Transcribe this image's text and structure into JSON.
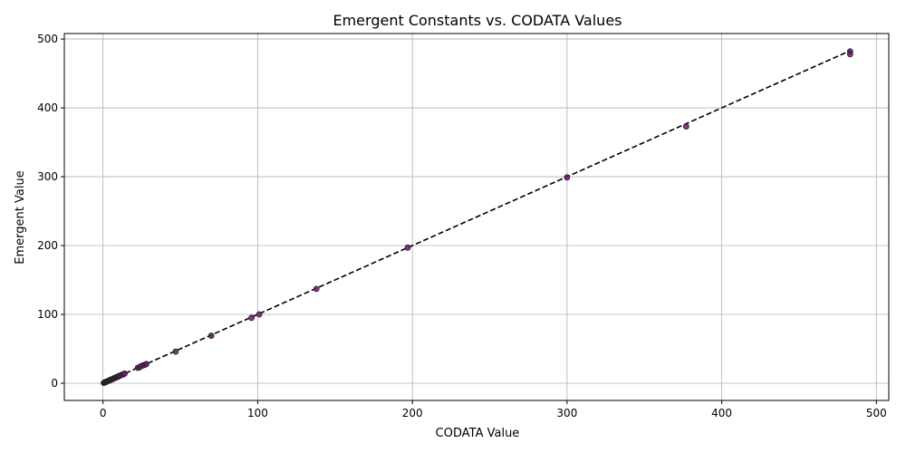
{
  "chart_data": {
    "type": "scatter",
    "title": "Emergent Constants vs. CODATA Values",
    "xlabel": "CODATA Value",
    "ylabel": "Emergent Value",
    "xlim": [
      -25,
      508
    ],
    "ylim": [
      -25,
      508
    ],
    "xticks": [
      0,
      100,
      200,
      300,
      400,
      500
    ],
    "yticks": [
      0,
      100,
      200,
      300,
      400,
      500
    ],
    "grid": true,
    "reference_line": {
      "style": "dashed",
      "color": "#000000",
      "from": [
        0,
        0
      ],
      "to": [
        483,
        483
      ]
    },
    "point_color": "#6a1a6a",
    "point_edge_color": "#222222",
    "points": [
      {
        "x": 0.5,
        "y": 0.5
      },
      {
        "x": 1.0,
        "y": 1.2
      },
      {
        "x": 1.5,
        "y": 1.4
      },
      {
        "x": 2.0,
        "y": 2.1
      },
      {
        "x": 2.5,
        "y": 2.3
      },
      {
        "x": 3.0,
        "y": 3.1
      },
      {
        "x": 3.5,
        "y": 3.6
      },
      {
        "x": 4.0,
        "y": 3.9
      },
      {
        "x": 4.5,
        "y": 4.6
      },
      {
        "x": 5.0,
        "y": 5.0
      },
      {
        "x": 5.5,
        "y": 5.4
      },
      {
        "x": 6.0,
        "y": 6.1
      },
      {
        "x": 6.5,
        "y": 6.4
      },
      {
        "x": 7.0,
        "y": 7.2
      },
      {
        "x": 7.5,
        "y": 7.4
      },
      {
        "x": 8.0,
        "y": 8.0
      },
      {
        "x": 8.5,
        "y": 8.6
      },
      {
        "x": 9.0,
        "y": 9.1
      },
      {
        "x": 9.5,
        "y": 9.3
      },
      {
        "x": 10.0,
        "y": 10.1
      },
      {
        "x": 10.5,
        "y": 10.4
      },
      {
        "x": 11.0,
        "y": 11.2
      },
      {
        "x": 12.0,
        "y": 12.1
      },
      {
        "x": 13.0,
        "y": 12.8
      },
      {
        "x": 14.0,
        "y": 14.1
      },
      {
        "x": 22.5,
        "y": 22.4
      },
      {
        "x": 23.5,
        "y": 23.2
      },
      {
        "x": 24.5,
        "y": 24.6
      },
      {
        "x": 26.0,
        "y": 26.1
      },
      {
        "x": 27.0,
        "y": 26.8
      },
      {
        "x": 28.0,
        "y": 27.9
      },
      {
        "x": 47,
        "y": 46
      },
      {
        "x": 70,
        "y": 69
      },
      {
        "x": 96,
        "y": 95
      },
      {
        "x": 101,
        "y": 100
      },
      {
        "x": 138,
        "y": 137
      },
      {
        "x": 197,
        "y": 197
      },
      {
        "x": 300,
        "y": 299
      },
      {
        "x": 377,
        "y": 373
      },
      {
        "x": 483,
        "y": 482
      },
      {
        "x": 483,
        "y": 478
      }
    ]
  }
}
